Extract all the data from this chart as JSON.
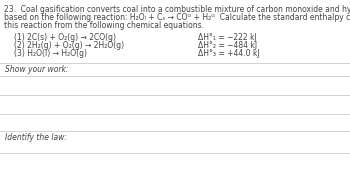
{
  "bg_color": "#ffffff",
  "text_color": "#444444",
  "line_color": "#cccccc",
  "title_line1": "23.  Coal gasification converts coal into a combustible mixture of carbon monoxide and hydrogen (coal gas)",
  "title_line2": "based on the following reaction: H₂Oₗ + Cₛ → COᴳ + H₂ᴳ  Calculate the standard enthalpy change for",
  "title_line3": "this reaction from the following chemical equations.",
  "eq1_left": "(1) 2C(s) + O₂(g) → 2CO(g)",
  "eq2_left": "(2) 2H₂(g) + O₂(g) → 2H₂O(g)",
  "eq3_left": "(3) H₂O(l) → H₂O(g)",
  "eq1_right": "ΔH°₁ = −222 kJ",
  "eq2_right": "ΔH°₂ = −484 kJ",
  "eq3_right": "ΔH°₃ = +44.0 kJ",
  "show_work_label": "Show your work:",
  "identify_law_label": "Identify the law:",
  "font_size_title": 5.5,
  "font_size_eq": 5.5,
  "font_size_label": 5.5
}
